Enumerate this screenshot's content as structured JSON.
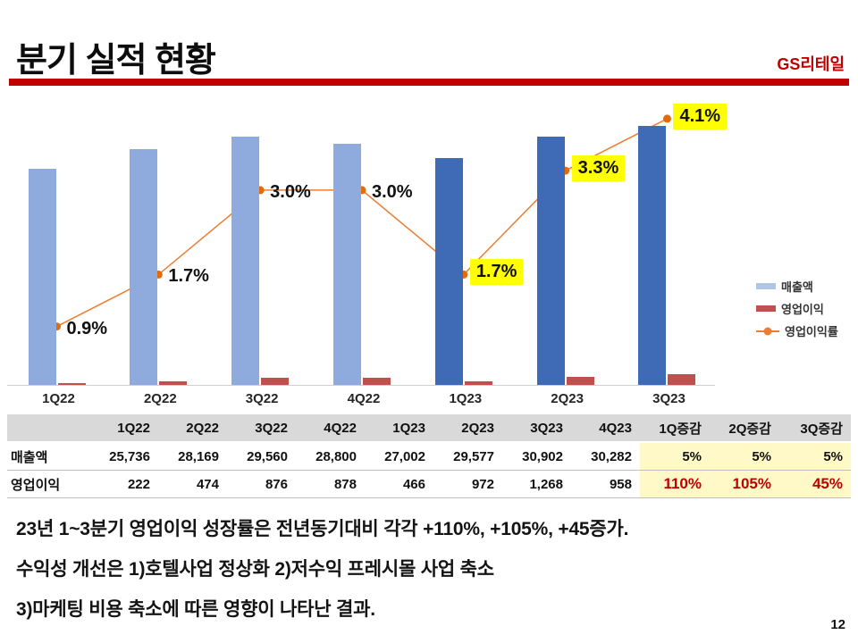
{
  "header": {
    "title": "분기 실적 현황",
    "brand": "GS리테일",
    "rule_color": "#c00000"
  },
  "chart_data": {
    "type": "combo",
    "categories": [
      "1Q22",
      "2Q22",
      "3Q22",
      "4Q22",
      "1Q23",
      "2Q23",
      "3Q23"
    ],
    "series": [
      {
        "name": "매출액",
        "type": "bar",
        "values": [
          25736,
          28169,
          29560,
          28800,
          27002,
          29577,
          30902
        ]
      },
      {
        "name": "영업이익",
        "type": "bar",
        "values": [
          222,
          474,
          876,
          878,
          466,
          972,
          1268
        ]
      },
      {
        "name": "영업이익률",
        "type": "line",
        "values_pct": [
          0.9,
          1.7,
          3.0,
          3.0,
          1.7,
          3.3,
          4.1
        ],
        "labels": [
          "0.9%",
          "1.7%",
          "3.0%",
          "3.0%",
          "1.7%",
          "3.3%",
          "4.1%"
        ],
        "highlighted": [
          false,
          false,
          false,
          false,
          true,
          true,
          true
        ]
      }
    ],
    "colors": {
      "bar_2022": "#8FAADC",
      "bar_2023": "#3F6AB5",
      "profit": "#C0504D",
      "line": "#ED7D31",
      "marker": "#E26B0A",
      "highlight_bg": "#FFFF00"
    },
    "legend": [
      {
        "label": "매출액",
        "type": "bar",
        "color": "#AFC6E9"
      },
      {
        "label": "영업이익",
        "type": "bar",
        "color": "#C0504D"
      },
      {
        "label": "영업이익률",
        "type": "line",
        "color": "#ED7D31"
      }
    ],
    "title": "",
    "xlabel": "",
    "ylabel": "",
    "y_axis_visible": false,
    "ylim_left": [
      0,
      35000
    ],
    "ylim_right_pct": [
      0,
      4.95
    ],
    "grid": false,
    "legend_position": "right"
  },
  "table": {
    "columns": [
      "",
      "1Q22",
      "2Q22",
      "3Q22",
      "4Q22",
      "1Q23",
      "2Q23",
      "3Q23",
      "4Q23",
      "1Q증감",
      "2Q증감",
      "3Q증감"
    ],
    "rows": [
      {
        "label": "매출액",
        "values": [
          "25,736",
          "28,169",
          "29,560",
          "28,800",
          "27,002",
          "29,577",
          "30,902",
          "30,282"
        ],
        "deltas": [
          "5%",
          "5%",
          "5%"
        ],
        "delta_color": "#111111",
        "delta_font_px": 15
      },
      {
        "label": "영업이익",
        "values": [
          "222",
          "474",
          "876",
          "878",
          "466",
          "972",
          "1,268",
          "958"
        ],
        "deltas": [
          "110%",
          "105%",
          "45%"
        ],
        "delta_color": "#C00000",
        "delta_font_px": 17
      }
    ],
    "header_bg": "#D9D9D9",
    "highlight_bg": "#FFF9C8"
  },
  "notes": {
    "line1": "23년 1~3분기 영업이익 성장률은 전년동기대비 각각 +110%, +105%, +45증가.",
    "line2": "수익성 개선은 1)호텔사업 정상화 2)저수익 프레시몰 사업 축소",
    "line3": "3)마케팅 비용 축소에 따른 영향이 나타난 결과."
  },
  "page_number": "12"
}
